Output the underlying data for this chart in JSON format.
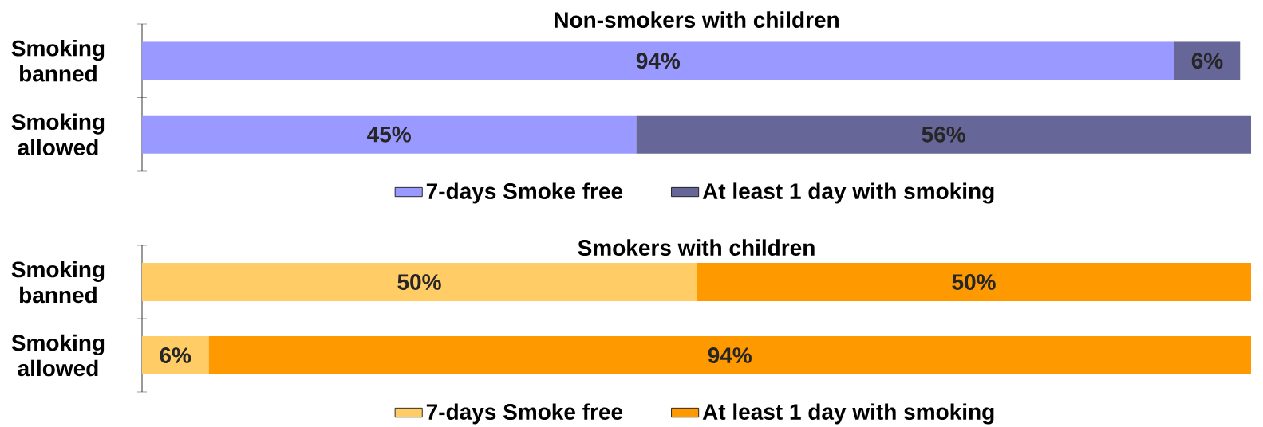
{
  "chart_data": [
    {
      "type": "bar",
      "orientation": "horizontal",
      "stacked": true,
      "title": "Non-smokers with children",
      "categories": [
        "Smoking banned",
        "Smoking allowed"
      ],
      "xlim": [
        0,
        101
      ],
      "tick_labels": "y",
      "legend": "bottom",
      "series": [
        {
          "name": "7-days Smoke free",
          "color": "#9999ff",
          "values": [
            94,
            45
          ],
          "value_labels": [
            "94%",
            "45%"
          ]
        },
        {
          "name": "At least 1 day with smoking",
          "color": "#666699",
          "values": [
            6,
            56
          ],
          "value_labels": [
            "6%",
            "56%"
          ]
        }
      ]
    },
    {
      "type": "bar",
      "orientation": "horizontal",
      "stacked": true,
      "title": "Smokers with children",
      "categories": [
        "Smoking banned",
        "Smoking allowed"
      ],
      "xlim": [
        0,
        100
      ],
      "tick_labels": "y",
      "legend": "bottom",
      "series": [
        {
          "name": "7-days Smoke free",
          "color": "#ffcc66",
          "values": [
            50,
            6
          ],
          "value_labels": [
            "50%",
            "6%"
          ]
        },
        {
          "name": "At least 1 day with smoking",
          "color": "#ff9900",
          "values": [
            50,
            94
          ],
          "value_labels": [
            "50%",
            "94%"
          ]
        }
      ]
    }
  ]
}
